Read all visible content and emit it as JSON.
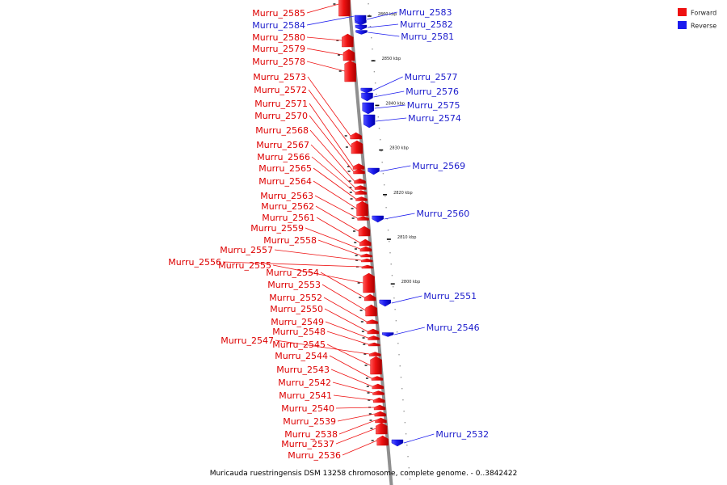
{
  "colors": {
    "forward": "#ee1111",
    "reverse": "#1b1bee",
    "backbone": "#8a8a8a",
    "background": "#ffffff"
  },
  "legend": {
    "forward_label": "Forward",
    "reverse_label": "Reverse"
  },
  "caption": "Muricauda ruestringensis DSM 13258 chromosome, complete genome. - 0..3842422",
  "ticks": [
    {
      "label": "2860 kbp",
      "kbp": 2860
    },
    {
      "label": "2850 kbp",
      "kbp": 2850
    },
    {
      "label": "2840 kbp",
      "kbp": 2840
    },
    {
      "label": "2830 kbp",
      "kbp": 2830
    },
    {
      "label": "2820 kbp",
      "kbp": 2820
    },
    {
      "label": "2810 kbp",
      "kbp": 2810
    },
    {
      "label": "2800 kbp",
      "kbp": 2800
    }
  ],
  "forward_genes": [
    {
      "name": "Murru_2585"
    },
    {
      "name": "Murru_2580"
    },
    {
      "name": "Murru_2579"
    },
    {
      "name": "Murru_2578"
    },
    {
      "name": "Murru_2573"
    },
    {
      "name": "Murru_2572"
    },
    {
      "name": "Murru_2571"
    },
    {
      "name": "Murru_2570"
    },
    {
      "name": "Murru_2568"
    },
    {
      "name": "Murru_2567"
    },
    {
      "name": "Murru_2566"
    },
    {
      "name": "Murru_2565"
    },
    {
      "name": "Murru_2564"
    },
    {
      "name": "Murru_2563"
    },
    {
      "name": "Murru_2562"
    },
    {
      "name": "Murru_2561"
    },
    {
      "name": "Murru_2559"
    },
    {
      "name": "Murru_2558"
    },
    {
      "name": "Murru_2557"
    },
    {
      "name": "Murru_2556"
    },
    {
      "name": "Murru_2555"
    },
    {
      "name": "Murru_2554"
    },
    {
      "name": "Murru_2553"
    },
    {
      "name": "Murru_2552"
    },
    {
      "name": "Murru_2550"
    },
    {
      "name": "Murru_2549"
    },
    {
      "name": "Murru_2548"
    },
    {
      "name": "Murru_2547"
    },
    {
      "name": "Murru_2545"
    },
    {
      "name": "Murru_2544"
    },
    {
      "name": "Murru_2543"
    },
    {
      "name": "Murru_2542"
    },
    {
      "name": "Murru_2541"
    },
    {
      "name": "Murru_2540"
    },
    {
      "name": "Murru_2539"
    },
    {
      "name": "Murru_2538"
    },
    {
      "name": "Murru_2537"
    },
    {
      "name": "Murru_2536"
    }
  ],
  "reverse_genes": [
    {
      "name": "Murru_2584"
    },
    {
      "name": "Murru_2583"
    },
    {
      "name": "Murru_2582"
    },
    {
      "name": "Murru_2581"
    },
    {
      "name": "Murru_2577"
    },
    {
      "name": "Murru_2576"
    },
    {
      "name": "Murru_2575"
    },
    {
      "name": "Murru_2574"
    },
    {
      "name": "Murru_2569"
    },
    {
      "name": "Murru_2560"
    },
    {
      "name": "Murru_2551"
    },
    {
      "name": "Murru_2546"
    },
    {
      "name": "Murru_2532"
    }
  ]
}
